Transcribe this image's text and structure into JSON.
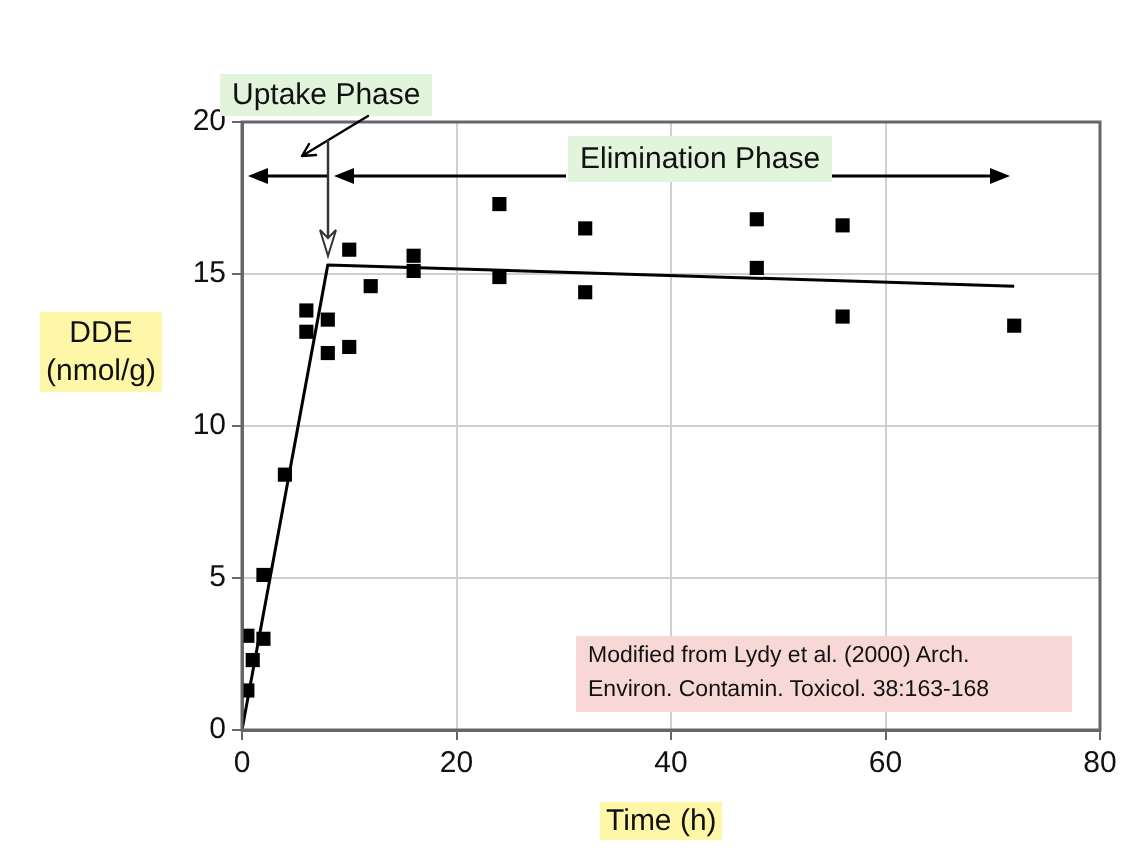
{
  "chart_data": {
    "type": "scatter",
    "xlabel": "Time (h)",
    "ylabel": "DDE\n(nmol/g)",
    "annotations": [
      "Uptake Phase",
      "Elimination Phase",
      "Modified from Lydy et al. (2000) Arch. Environ. Contamin. Toxicol. 38:163-168"
    ],
    "series": [
      {
        "color": "#000000",
        "marker": "square",
        "x": [
          0.5,
          0.5,
          1,
          2,
          2,
          4,
          6,
          6,
          8,
          8,
          10,
          10,
          12,
          16,
          16,
          24,
          24,
          32,
          32,
          48,
          48,
          56,
          56,
          72
        ],
        "values": [
          1.3,
          3.1,
          2.3,
          3.0,
          5.1,
          8.4,
          13.8,
          13.1,
          13.5,
          12.4,
          12.6,
          15.8,
          14.6,
          15.6,
          15.1,
          17.3,
          14.9,
          16.5,
          14.4,
          16.8,
          15.2,
          16.6,
          13.6,
          13.3
        ]
      },
      {
        "type": "line",
        "color": "#000000",
        "marker": "none",
        "x": [
          0,
          8,
          72
        ],
        "values": [
          0,
          15.3,
          14.6
        ]
      }
    ],
    "xlim": [
      0,
      80
    ],
    "xticks": [
      0,
      20,
      40,
      60,
      80
    ],
    "ylim": [
      0,
      20
    ],
    "yticks": [
      0,
      5,
      10,
      15,
      20
    ],
    "grid": true,
    "legend": false
  }
}
